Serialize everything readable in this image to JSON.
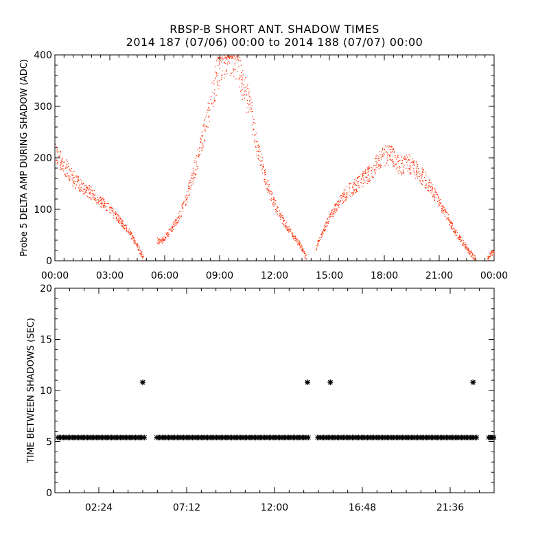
{
  "title": "RBSP-B SHORT ANT. SHADOW TIMES",
  "subtitle": "2014 187 (07/06) 00:00 to 2014 188 (07/07) 00:00",
  "colors": {
    "top_data": "#ff2a00",
    "bottom_data": "#000000",
    "axis": "#000000"
  },
  "chart_data": [
    {
      "type": "scatter",
      "name": "shadow-delta-amplitude",
      "ylabel": "Probe 5 DELTA AMP DURING SHADOW (ADC)",
      "xlabel": "",
      "xlim": [
        0,
        24
      ],
      "ylim": [
        0,
        400
      ],
      "xticks": [
        0,
        3,
        6,
        9,
        12,
        15,
        18,
        21,
        24
      ],
      "xtick_labels": [
        "00:00",
        "03:00",
        "06:00",
        "09:00",
        "12:00",
        "15:00",
        "18:00",
        "21:00",
        "00:00"
      ],
      "yticks": [
        0,
        100,
        200,
        300,
        400
      ],
      "ytick_labels": [
        "0",
        "100",
        "200",
        "300",
        "400"
      ],
      "series": [
        {
          "name": "delta-amp",
          "color": "#ff2a00",
          "segments": [
            {
              "x": [
                0.0,
                0.3,
                0.7,
                1.0,
                1.5,
                2.0,
                2.5,
                3.0,
                3.5,
                4.0,
                4.4,
                4.7,
                4.85
              ],
              "y": [
                215,
                195,
                175,
                160,
                145,
                130,
                115,
                100,
                80,
                60,
                35,
                15,
                3
              ]
            },
            {
              "x": [
                5.55,
                5.8,
                6.2,
                6.6,
                7.0,
                7.5,
                8.0,
                8.5,
                8.9,
                9.3,
                9.6,
                9.9
              ],
              "y": [
                40,
                38,
                55,
                75,
                105,
                160,
                230,
                310,
                370,
                400,
                400,
                390
              ]
            },
            {
              "x": [
                9.9,
                10.3,
                10.7,
                11.0,
                11.4,
                11.8,
                12.2,
                12.6,
                13.0,
                13.4,
                13.75
              ],
              "y": [
                390,
                340,
                290,
                230,
                170,
                125,
                95,
                70,
                50,
                30,
                5
              ]
            },
            {
              "x": [
                14.25,
                14.6,
                15.0,
                15.5,
                16.0,
                16.5,
                17.0,
                17.5,
                18.0,
                18.4,
                18.8,
                19.3,
                19.8,
                20.3,
                20.8,
                21.3,
                21.8,
                22.3,
                22.7,
                23.0
              ],
              "y": [
                25,
                55,
                85,
                115,
                135,
                150,
                165,
                185,
                205,
                205,
                185,
                190,
                175,
                155,
                125,
                95,
                60,
                35,
                15,
                5
              ]
            },
            {
              "x": [
                23.6,
                23.8,
                24.0
              ],
              "y": [
                5,
                12,
                18
              ]
            }
          ]
        }
      ]
    },
    {
      "type": "scatter",
      "name": "time-between-shadows",
      "ylabel": "TIME BETWEEN SHADOWS (SEC)",
      "xlabel": "",
      "xlim": [
        0,
        24
      ],
      "ylim": [
        0,
        20
      ],
      "xticks": [
        2.4,
        7.2,
        12.0,
        16.8,
        21.6
      ],
      "xtick_labels": [
        "02:24",
        "07:12",
        "12:00",
        "16:48",
        "21:36"
      ],
      "yticks": [
        0,
        5,
        10,
        15,
        20
      ],
      "ytick_labels": [
        "0",
        "5",
        "10",
        "15",
        "20"
      ],
      "series": [
        {
          "name": "spacing",
          "color": "#000000",
          "runs": [
            {
              "x_start": 0.15,
              "x_end": 4.9,
              "y": 5.4
            },
            {
              "x_start": 5.55,
              "x_end": 13.85,
              "y": 5.4
            },
            {
              "x_start": 14.35,
              "x_end": 23.05,
              "y": 5.4
            },
            {
              "x_start": 23.7,
              "x_end": 24.0,
              "y": 5.4
            }
          ],
          "points": [
            {
              "x": 4.8,
              "y": 10.8
            },
            {
              "x": 13.8,
              "y": 10.8
            },
            {
              "x": 15.05,
              "y": 10.8
            },
            {
              "x": 22.85,
              "y": 10.8
            }
          ]
        }
      ]
    }
  ]
}
